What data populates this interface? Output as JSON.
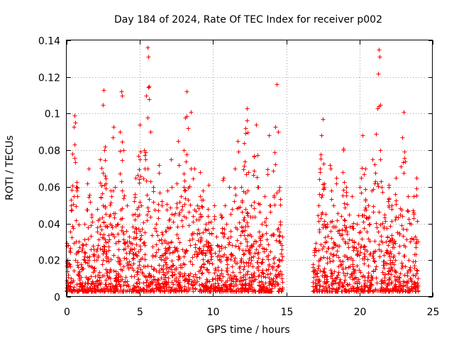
{
  "chart_data": {
    "type": "scatter",
    "title": "Day 184 of 2024, Rate Of TEC Index for receiver p002",
    "xlabel": "GPS time / hours",
    "ylabel": "ROTI / TECUs",
    "xlim": [
      0,
      25
    ],
    "ylim": [
      0,
      0.14
    ],
    "x_ticks": [
      0,
      5,
      10,
      15,
      20,
      25
    ],
    "x_tick_labels": [
      "0",
      "5",
      "10",
      "15",
      "20",
      "25"
    ],
    "y_ticks": [
      0,
      0.02,
      0.04,
      0.06,
      0.08,
      0.1,
      0.12,
      0.14
    ],
    "y_tick_labels": [
      "0",
      "0.02",
      "0.04",
      "0.06",
      "0.08",
      "0.1",
      "0.12",
      "0.14"
    ],
    "grid": true,
    "marker": "plus",
    "colors": {
      "series": "#ff0000",
      "grid": "#a0a0a0",
      "axes": "#000000"
    },
    "data_gap_hours": [
      14.75,
      16.8
    ],
    "series": [
      {
        "name": "ROTI",
        "points": [
          [
            0.1,
            0.012
          ],
          [
            0.2,
            0.025
          ],
          [
            0.3,
            0.05
          ],
          [
            0.4,
            0.078
          ],
          [
            0.5,
            0.093
          ],
          [
            0.55,
            0.099
          ],
          [
            0.6,
            0.095
          ],
          [
            0.7,
            0.06
          ],
          [
            0.8,
            0.03
          ],
          [
            1.0,
            0.015
          ],
          [
            1.2,
            0.04
          ],
          [
            1.4,
            0.062
          ],
          [
            1.5,
            0.07
          ],
          [
            1.7,
            0.045
          ],
          [
            1.9,
            0.02
          ],
          [
            2.1,
            0.048
          ],
          [
            2.3,
            0.075
          ],
          [
            2.45,
            0.105
          ],
          [
            2.5,
            0.113
          ],
          [
            2.6,
            0.066
          ],
          [
            2.8,
            0.03
          ],
          [
            3.0,
            0.058
          ],
          [
            3.15,
            0.087
          ],
          [
            3.2,
            0.093
          ],
          [
            3.3,
            0.06
          ],
          [
            3.5,
            0.04
          ],
          [
            3.65,
            0.09
          ],
          [
            3.75,
            0.112
          ],
          [
            3.8,
            0.11
          ],
          [
            3.9,
            0.08
          ],
          [
            4.1,
            0.05
          ],
          [
            4.3,
            0.025
          ],
          [
            4.5,
            0.045
          ],
          [
            4.7,
            0.065
          ],
          [
            4.9,
            0.077
          ],
          [
            5.0,
            0.094
          ],
          [
            5.1,
            0.05
          ],
          [
            5.3,
            0.08
          ],
          [
            5.45,
            0.11
          ],
          [
            5.5,
            0.136
          ],
          [
            5.55,
            0.131
          ],
          [
            5.6,
            0.115
          ],
          [
            5.7,
            0.09
          ],
          [
            5.9,
            0.06
          ],
          [
            6.1,
            0.04
          ],
          [
            6.3,
            0.072
          ],
          [
            6.5,
            0.05
          ],
          [
            6.7,
            0.03
          ],
          [
            6.9,
            0.058
          ],
          [
            7.1,
            0.075
          ],
          [
            7.3,
            0.045
          ],
          [
            7.5,
            0.062
          ],
          [
            7.6,
            0.085
          ],
          [
            7.8,
            0.055
          ],
          [
            8.0,
            0.08
          ],
          [
            8.1,
            0.098
          ],
          [
            8.2,
            0.112
          ],
          [
            8.3,
            0.092
          ],
          [
            8.5,
            0.101
          ],
          [
            8.7,
            0.07
          ],
          [
            8.9,
            0.05
          ],
          [
            9.1,
            0.068
          ],
          [
            9.3,
            0.058
          ],
          [
            9.5,
            0.04
          ],
          [
            9.7,
            0.061
          ],
          [
            9.9,
            0.035
          ],
          [
            10.1,
            0.05
          ],
          [
            10.3,
            0.028
          ],
          [
            10.5,
            0.045
          ],
          [
            10.7,
            0.065
          ],
          [
            10.9,
            0.04
          ],
          [
            11.1,
            0.06
          ],
          [
            11.3,
            0.048
          ],
          [
            11.5,
            0.07
          ],
          [
            11.7,
            0.085
          ],
          [
            11.9,
            0.06
          ],
          [
            12.1,
            0.084
          ],
          [
            12.2,
            0.092
          ],
          [
            12.3,
            0.103
          ],
          [
            12.4,
            0.068
          ],
          [
            12.6,
            0.05
          ],
          [
            12.8,
            0.077
          ],
          [
            12.95,
            0.094
          ],
          [
            13.1,
            0.06
          ],
          [
            13.3,
            0.04
          ],
          [
            13.5,
            0.055
          ],
          [
            13.7,
            0.067
          ],
          [
            13.8,
            0.088
          ],
          [
            13.9,
            0.05
          ],
          [
            14.1,
            0.069
          ],
          [
            14.25,
            0.093
          ],
          [
            14.35,
            0.116
          ],
          [
            14.45,
            0.09
          ],
          [
            14.55,
            0.06
          ],
          [
            14.7,
            0.02
          ],
          [
            17.0,
            0.025
          ],
          [
            17.2,
            0.05
          ],
          [
            17.3,
            0.07
          ],
          [
            17.4,
            0.088
          ],
          [
            17.5,
            0.097
          ],
          [
            17.6,
            0.06
          ],
          [
            17.8,
            0.04
          ],
          [
            18.0,
            0.07
          ],
          [
            18.2,
            0.05
          ],
          [
            18.4,
            0.065
          ],
          [
            18.6,
            0.035
          ],
          [
            18.9,
            0.08
          ],
          [
            19.1,
            0.06
          ],
          [
            19.3,
            0.045
          ],
          [
            19.5,
            0.055
          ],
          [
            19.8,
            0.04
          ],
          [
            20.0,
            0.06
          ],
          [
            20.2,
            0.088
          ],
          [
            20.4,
            0.07
          ],
          [
            20.6,
            0.05
          ],
          [
            20.9,
            0.075
          ],
          [
            21.1,
            0.089
          ],
          [
            21.2,
            0.103
          ],
          [
            21.25,
            0.122
          ],
          [
            21.3,
            0.135
          ],
          [
            21.35,
            0.131
          ],
          [
            21.5,
            0.06
          ],
          [
            21.7,
            0.045
          ],
          [
            22.0,
            0.06
          ],
          [
            22.2,
            0.05
          ],
          [
            22.5,
            0.065
          ],
          [
            22.7,
            0.035
          ],
          [
            22.9,
            0.087
          ],
          [
            23.0,
            0.101
          ],
          [
            23.1,
            0.074
          ],
          [
            23.3,
            0.055
          ],
          [
            23.5,
            0.04
          ],
          [
            23.7,
            0.055
          ],
          [
            23.9,
            0.065
          ],
          [
            24.0,
            0.03
          ]
        ]
      }
    ]
  }
}
